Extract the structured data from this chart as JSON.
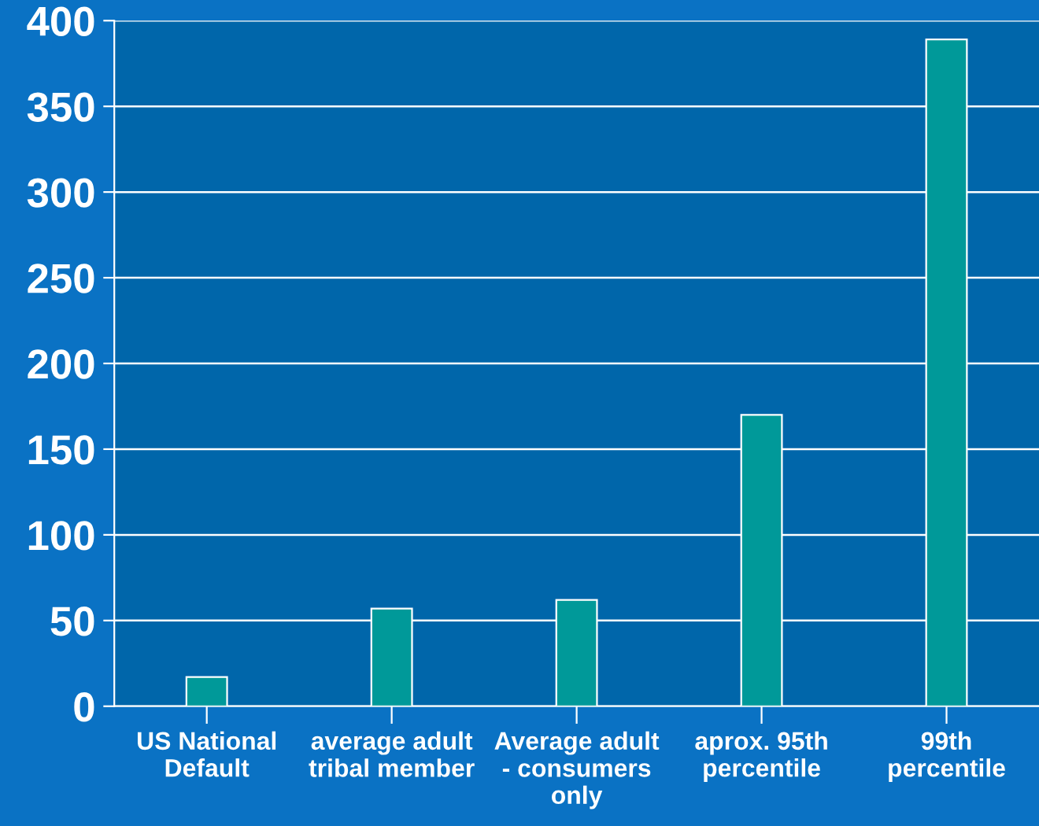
{
  "chart_data": {
    "type": "bar",
    "categories": [
      "US National\nDefault",
      "average adult\ntribal member",
      "Average adult\n- consumers\nonly",
      "aprox. 95th\npercentile",
      "99th\npercentile"
    ],
    "values": [
      17,
      57,
      62,
      170,
      389
    ],
    "color": "#009999",
    "ylim": [
      0,
      400
    ],
    "yticks": [
      0,
      50,
      100,
      150,
      200,
      250,
      300,
      350,
      400
    ],
    "grid": "y"
  }
}
